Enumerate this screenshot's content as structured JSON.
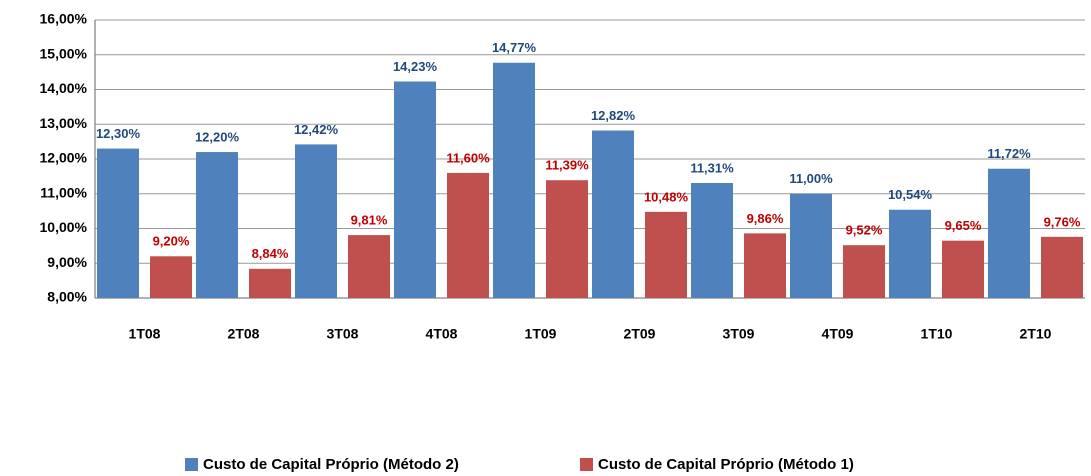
{
  "chart_data": {
    "type": "bar",
    "categories": [
      "1T08",
      "2T08",
      "3T08",
      "4T08",
      "1T09",
      "2T09",
      "3T09",
      "4T09",
      "1T10",
      "2T10"
    ],
    "series": [
      {
        "name": "Custo de Capital Próprio (Método 2)",
        "color": "#4f81bd",
        "values": [
          12.3,
          12.2,
          12.42,
          14.23,
          14.77,
          12.82,
          11.31,
          11.0,
          10.54,
          11.72
        ],
        "value_labels": [
          "12,30%",
          "12,20%",
          "12,42%",
          "14,23%",
          "14,77%",
          "12,82%",
          "11,31%",
          "11,00%",
          "10,54%",
          "11,72%"
        ]
      },
      {
        "name": "Custo de Capital Próprio (Método 1)",
        "color": "#c0504d",
        "values": [
          9.2,
          8.84,
          9.81,
          11.6,
          11.39,
          10.48,
          9.86,
          9.52,
          9.65,
          9.76
        ],
        "value_labels": [
          "9,20%",
          "8,84%",
          "9,81%",
          "11,60%",
          "11,39%",
          "10,48%",
          "9,86%",
          "9,52%",
          "9,65%",
          "9,76%"
        ]
      }
    ],
    "ylim": [
      8,
      16
    ],
    "yticks": [
      {
        "value": 8,
        "label": "8,00%"
      },
      {
        "value": 9,
        "label": "9,00%"
      },
      {
        "value": 10,
        "label": "10,00%"
      },
      {
        "value": 11,
        "label": "11,00%"
      },
      {
        "value": 12,
        "label": "12,00%"
      },
      {
        "value": 13,
        "label": "13,00%"
      },
      {
        "value": 14,
        "label": "14,00%"
      },
      {
        "value": 15,
        "label": "15,00%"
      },
      {
        "value": 16,
        "label": "16,00%"
      }
    ],
    "grid": true,
    "legend": "bottom"
  }
}
